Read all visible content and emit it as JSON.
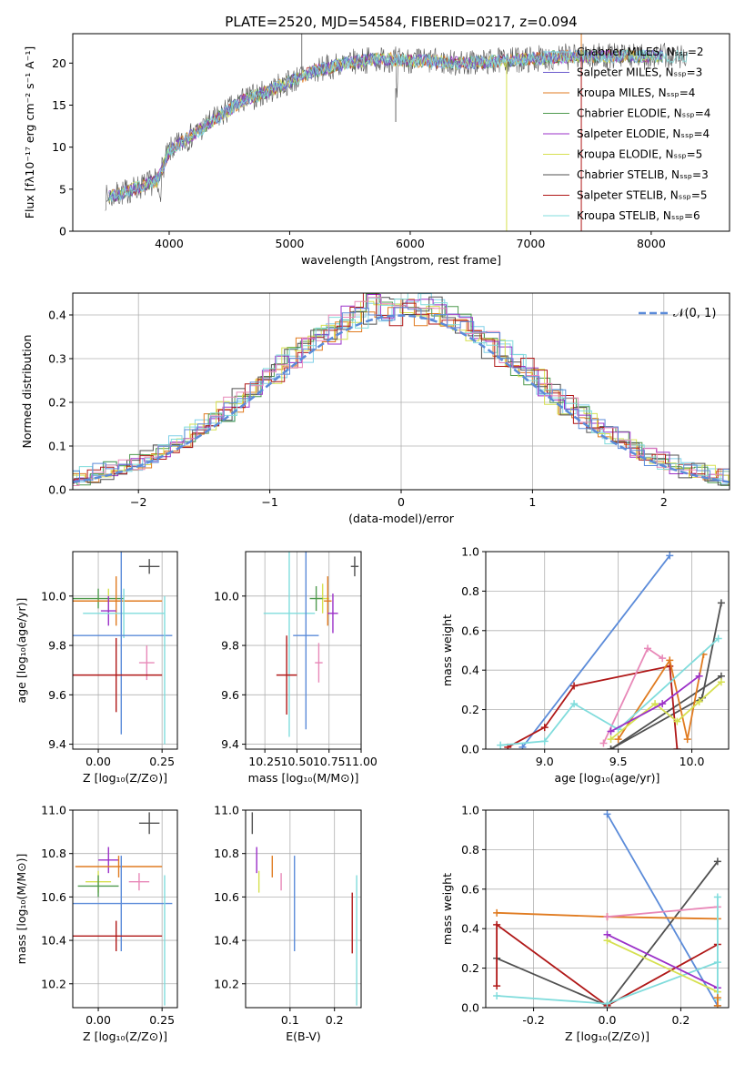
{
  "figure_title": "PLATE=2520, MJD=54584, FIBERID=0217, z=0.094",
  "colors": {
    "chabrier_miles": "#80d0e8",
    "salpeter_miles": "#6a5acd",
    "kroupa_miles": "#e07b20",
    "chabrier_elodie": "#4f9a4f",
    "salpeter_elodie": "#9b30c8",
    "kroupa_elodie": "#d6e050",
    "chabrier_stelib": "#505050",
    "salpeter_stelib": "#b01818",
    "kroupa_stelib": "#80dcdc",
    "gauss": "#5b8bd9",
    "pink": "#e888b8",
    "blue": "#5b8bd9"
  },
  "chart_data": [
    {
      "type": "line",
      "panel": "spectrum",
      "xlabel": "wavelength [Angstrom, rest frame]",
      "ylabel": "Flux [fλ10⁻¹⁷ erg cm⁻² s⁻¹ A⁻¹]",
      "xlim": [
        3200,
        8650
      ],
      "ylim": [
        0,
        23.5
      ],
      "x_ticks": [
        4000,
        5000,
        6000,
        7000,
        8000
      ],
      "y_ticks": [
        0,
        5,
        10,
        15,
        20
      ],
      "grid": false,
      "legend_position": "right",
      "continuum_x": [
        3500,
        3700,
        3900,
        4000,
        4200,
        4400,
        4600,
        4800,
        5000,
        5200,
        5400,
        5600,
        5800,
        6000,
        6200,
        6400,
        6600,
        6800,
        7000,
        7200,
        7400
      ],
      "continuum_y": [
        4,
        5,
        6,
        9.5,
        11.5,
        13.5,
        15.5,
        16.5,
        17.8,
        19,
        19.8,
        20.3,
        20.5,
        20.3,
        20.2,
        20.0,
        20.1,
        20.3,
        20.5,
        20.7,
        20.8
      ],
      "series": [
        {
          "name": "Chabrier MILES, Nₛₛₚ=2"
        },
        {
          "name": "Salpeter MILES, Nₛₛₚ=3"
        },
        {
          "name": "Kroupa MILES, Nₛₛₚ=4"
        },
        {
          "name": "Chabrier ELODIE, Nₛₛₚ=4"
        },
        {
          "name": "Salpeter ELODIE, Nₛₛₚ=4"
        },
        {
          "name": "Kroupa ELODIE, Nₛₛₚ=5"
        },
        {
          "name": "Chabrier STELIB, Nₛₛₚ=3"
        },
        {
          "name": "Salpeter STELIB, Nₛₛₚ=5"
        },
        {
          "name": "Kroupa STELIB, Nₛₛₚ=6"
        }
      ]
    },
    {
      "type": "bar",
      "panel": "residuals",
      "xlabel": "(data-model)/error",
      "ylabel": "Normed distribution",
      "xlim": [
        -2.5,
        2.5
      ],
      "ylim": [
        0,
        0.45
      ],
      "x_ticks": [
        -2,
        -1,
        0,
        1,
        2
      ],
      "y_ticks": [
        0.0,
        0.1,
        0.2,
        0.3,
        0.4
      ],
      "grid": true,
      "legend_position": "top-right",
      "series": [
        {
          "name": "𝒩(0, 1)",
          "style": "dashed"
        }
      ]
    },
    {
      "type": "scatter",
      "panel": "age_vs_Z",
      "xlabel": "Z [log₁₀(Z/Z⊙)]",
      "ylabel": "age  [log₁₀(age/yr)]",
      "xlim": [
        -0.1,
        0.31
      ],
      "ylim": [
        9.38,
        10.18
      ],
      "x_ticks": [
        0.0,
        0.25
      ],
      "y_ticks": [
        9.4,
        9.6,
        9.8,
        10.0
      ],
      "grid": true,
      "points": [
        {
          "x": 0.2,
          "y": 10.12,
          "xerr": 0.04,
          "yerr": 0.03,
          "c": "chabrier_stelib"
        },
        {
          "x": 0.0,
          "y": 9.99,
          "xerr": 0.1,
          "yerr": 0.04,
          "c": "chabrier_elodie"
        },
        {
          "x": 0.04,
          "y": 9.98,
          "xerr": 0.05,
          "yerr": 0.05,
          "c": "kroupa_elodie"
        },
        {
          "x": 0.07,
          "y": 9.98,
          "xerr": 0.18,
          "yerr": 0.1,
          "c": "kroupa_miles"
        },
        {
          "x": 0.04,
          "y": 9.94,
          "xerr": 0.03,
          "yerr": 0.06,
          "c": "salpeter_elodie"
        },
        {
          "x": 0.1,
          "y": 9.93,
          "xerr": 0.16,
          "yerr": 0.1,
          "c": "kroupa_stelib"
        },
        {
          "x": 0.09,
          "y": 9.84,
          "xerr": 0.2,
          "yerr": 0.4,
          "c": "blue"
        },
        {
          "x": 0.19,
          "y": 9.73,
          "xerr": 0.03,
          "yerr": 0.07,
          "c": "pink"
        },
        {
          "x": 0.07,
          "y": 9.68,
          "xerr": 0.18,
          "yerr": 0.15,
          "c": "salpeter_stelib"
        },
        {
          "x": 0.26,
          "y": 9.7,
          "xerr": 0.0,
          "yerr": 0.3,
          "c": "kroupa_stelib"
        }
      ]
    },
    {
      "type": "scatter",
      "panel": "age_vs_mass",
      "xlabel": "mass [log₁₀(M/M⊙)]",
      "ylabel": "",
      "xlim": [
        10.1,
        11.0
      ],
      "ylim": [
        9.38,
        10.18
      ],
      "x_ticks": [
        10.25,
        10.5,
        10.75,
        11.0
      ],
      "x_ticklabels": [
        "10.25",
        "10.50",
        "10.75",
        "11.00"
      ],
      "y_ticks": [
        9.4,
        9.6,
        9.8,
        10.0
      ],
      "grid": true,
      "points": [
        {
          "x": 10.95,
          "y": 10.12,
          "xerr": 0.03,
          "yerr": 0.04,
          "c": "chabrier_stelib"
        },
        {
          "x": 10.7,
          "y": 9.99,
          "xerr": 0.05,
          "yerr": 0.06,
          "c": "kroupa_elodie"
        },
        {
          "x": 10.65,
          "y": 9.99,
          "xerr": 0.05,
          "yerr": 0.05,
          "c": "chabrier_elodie"
        },
        {
          "x": 10.74,
          "y": 9.98,
          "xerr": 0.03,
          "yerr": 0.1,
          "c": "kroupa_miles"
        },
        {
          "x": 10.78,
          "y": 9.93,
          "xerr": 0.04,
          "yerr": 0.08,
          "c": "salpeter_elodie"
        },
        {
          "x": 10.44,
          "y": 9.93,
          "xerr": 0.2,
          "yerr": 0.5,
          "c": "kroupa_stelib"
        },
        {
          "x": 10.57,
          "y": 9.84,
          "xerr": 0.1,
          "yerr": 0.38,
          "c": "blue"
        },
        {
          "x": 10.67,
          "y": 9.73,
          "xerr": 0.03,
          "yerr": 0.08,
          "c": "pink"
        },
        {
          "x": 10.42,
          "y": 9.68,
          "xerr": 0.08,
          "yerr": 0.16,
          "c": "salpeter_stelib"
        }
      ]
    },
    {
      "type": "line",
      "panel": "mass_weight_vs_age",
      "xlabel": "age  [log₁₀(age/yr)]",
      "ylabel": "mass weight",
      "xlim": [
        8.6,
        10.25
      ],
      "ylim": [
        0.0,
        1.0
      ],
      "x_ticks": [
        9.0,
        9.5,
        10.0
      ],
      "y_ticks": [
        0.0,
        0.2,
        0.4,
        0.6,
        0.8,
        1.0
      ],
      "grid": true,
      "series": [
        {
          "c": "blue",
          "x": [
            8.85,
            9.85
          ],
          "y": [
            0.01,
            0.98
          ]
        },
        {
          "c": "chabrier_stelib",
          "x": [
            9.45,
            10.07,
            10.2
          ],
          "y": [
            0.0,
            0.26,
            0.74
          ]
        },
        {
          "c": "chabrier_stelib",
          "x": [
            9.45,
            10.2
          ],
          "y": [
            0.0,
            0.37
          ]
        },
        {
          "c": "salpeter_stelib",
          "x": [
            8.75,
            9.0,
            9.2,
            9.85,
            9.9
          ],
          "y": [
            0.01,
            0.11,
            0.32,
            0.42,
            0.0
          ]
        },
        {
          "c": "kroupa_miles",
          "x": [
            9.5,
            9.85,
            9.97,
            10.08
          ],
          "y": [
            0.05,
            0.45,
            0.05,
            0.48
          ]
        },
        {
          "c": "pink",
          "x": [
            9.4,
            9.7,
            9.8
          ],
          "y": [
            0.03,
            0.51,
            0.46
          ]
        },
        {
          "c": "kroupa_stelib",
          "x": [
            8.7,
            9.0,
            9.2,
            9.5,
            10.18
          ],
          "y": [
            0.02,
            0.04,
            0.23,
            0.1,
            0.56
          ]
        },
        {
          "c": "kroupa_elodie",
          "x": [
            9.45,
            9.75,
            9.9,
            10.05,
            10.2
          ],
          "y": [
            0.05,
            0.23,
            0.14,
            0.24,
            0.34
          ]
        },
        {
          "c": "salpeter_elodie",
          "x": [
            9.45,
            9.8,
            10.05
          ],
          "y": [
            0.09,
            0.23,
            0.37
          ]
        }
      ]
    },
    {
      "type": "scatter",
      "panel": "mass_vs_Z",
      "xlabel": "Z [log₁₀(Z/Z⊙)]",
      "ylabel": "mass [log₁₀(M/M⊙)]",
      "xlim": [
        -0.1,
        0.31
      ],
      "ylim": [
        10.09,
        11.0
      ],
      "x_ticks": [
        0.0,
        0.25
      ],
      "y_ticks": [
        10.2,
        10.4,
        10.6,
        10.8,
        11.0
      ],
      "grid": true,
      "points": [
        {
          "x": 0.2,
          "y": 10.94,
          "xerr": 0.04,
          "yerr": 0.05,
          "c": "chabrier_stelib"
        },
        {
          "x": 0.04,
          "y": 10.77,
          "xerr": 0.04,
          "yerr": 0.06,
          "c": "salpeter_elodie"
        },
        {
          "x": 0.08,
          "y": 10.74,
          "xerr": 0.17,
          "yerr": 0.05,
          "c": "kroupa_miles"
        },
        {
          "x": 0.0,
          "y": 10.67,
          "xerr": 0.05,
          "yerr": 0.05,
          "c": "kroupa_elodie"
        },
        {
          "x": 0.16,
          "y": 10.67,
          "xerr": 0.04,
          "yerr": 0.04,
          "c": "pink"
        },
        {
          "x": 0.0,
          "y": 10.65,
          "xerr": 0.08,
          "yerr": 0.05,
          "c": "chabrier_elodie"
        },
        {
          "x": 0.09,
          "y": 10.57,
          "xerr": 0.2,
          "yerr": 0.22,
          "c": "blue"
        },
        {
          "x": 0.07,
          "y": 10.42,
          "xerr": 0.18,
          "yerr": 0.07,
          "c": "salpeter_stelib"
        },
        {
          "x": 0.26,
          "y": 10.4,
          "xerr": 0.0,
          "yerr": 0.3,
          "c": "kroupa_stelib"
        }
      ]
    },
    {
      "type": "scatter",
      "panel": "mass_vs_ebv",
      "xlabel": "E(B-V)",
      "ylabel": "",
      "xlim": [
        0.0,
        0.26
      ],
      "ylim": [
        10.09,
        11.0
      ],
      "x_ticks": [
        0.1,
        0.2
      ],
      "y_ticks": [
        10.2,
        10.4,
        10.6,
        10.8,
        11.0
      ],
      "grid": true,
      "points": [
        {
          "x": 0.015,
          "y": 10.94,
          "yerr": 0.05,
          "c": "chabrier_stelib"
        },
        {
          "x": 0.025,
          "y": 10.77,
          "yerr": 0.06,
          "c": "salpeter_elodie"
        },
        {
          "x": 0.06,
          "y": 10.74,
          "yerr": 0.05,
          "c": "kroupa_miles"
        },
        {
          "x": 0.03,
          "y": 10.67,
          "yerr": 0.05,
          "c": "kroupa_elodie"
        },
        {
          "x": 0.08,
          "y": 10.67,
          "yerr": 0.04,
          "c": "pink"
        },
        {
          "x": 0.11,
          "y": 10.57,
          "yerr": 0.22,
          "c": "blue"
        },
        {
          "x": 0.24,
          "y": 10.48,
          "yerr": 0.14,
          "c": "salpeter_stelib"
        },
        {
          "x": 0.25,
          "y": 10.4,
          "yerr": 0.3,
          "c": "kroupa_stelib"
        }
      ]
    },
    {
      "type": "line",
      "panel": "mass_weight_vs_Z",
      "xlabel": "Z [log₁₀(Z/Z⊙)]",
      "ylabel": "mass weight",
      "xlim": [
        -0.33,
        0.33
      ],
      "ylim": [
        0.0,
        1.0
      ],
      "x_ticks": [
        -0.2,
        0.0,
        0.2
      ],
      "y_ticks": [
        0.0,
        0.2,
        0.4,
        0.6,
        0.8,
        1.0
      ],
      "grid": true,
      "series": [
        {
          "c": "blue",
          "x": [
            0.0,
            0.3
          ],
          "y": [
            0.98,
            0.01
          ]
        },
        {
          "c": "chabrier_stelib",
          "x": [
            -0.3,
            0.0,
            0.3
          ],
          "y": [
            0.25,
            0.01,
            0.74
          ]
        },
        {
          "c": "salpeter_stelib",
          "x": [
            -0.3,
            -0.3,
            0.0,
            0.3
          ],
          "y": [
            0.11,
            0.42,
            0.01,
            0.32
          ]
        },
        {
          "c": "kroupa_miles",
          "x": [
            -0.3,
            0.0,
            0.3
          ],
          "y": [
            0.48,
            0.46,
            0.45
          ]
        },
        {
          "c": "pink",
          "x": [
            0.0,
            0.3
          ],
          "y": [
            0.46,
            0.51
          ]
        },
        {
          "c": "kroupa_stelib",
          "x": [
            -0.3,
            0.0,
            0.3
          ],
          "y": [
            0.06,
            0.02,
            0.23
          ]
        },
        {
          "c": "kroupa_elodie",
          "x": [
            0.0,
            0.3
          ],
          "y": [
            0.34,
            0.08
          ]
        },
        {
          "c": "salpeter_elodie",
          "x": [
            0.0,
            0.3
          ],
          "y": [
            0.37,
            0.1
          ]
        },
        {
          "c": "kroupa_stelib",
          "x": [
            0.3,
            0.3
          ],
          "y": [
            0.04,
            0.56
          ]
        },
        {
          "c": "kroupa_miles",
          "x": [
            0.3,
            0.3
          ],
          "y": [
            0.01,
            0.05
          ]
        }
      ]
    }
  ]
}
